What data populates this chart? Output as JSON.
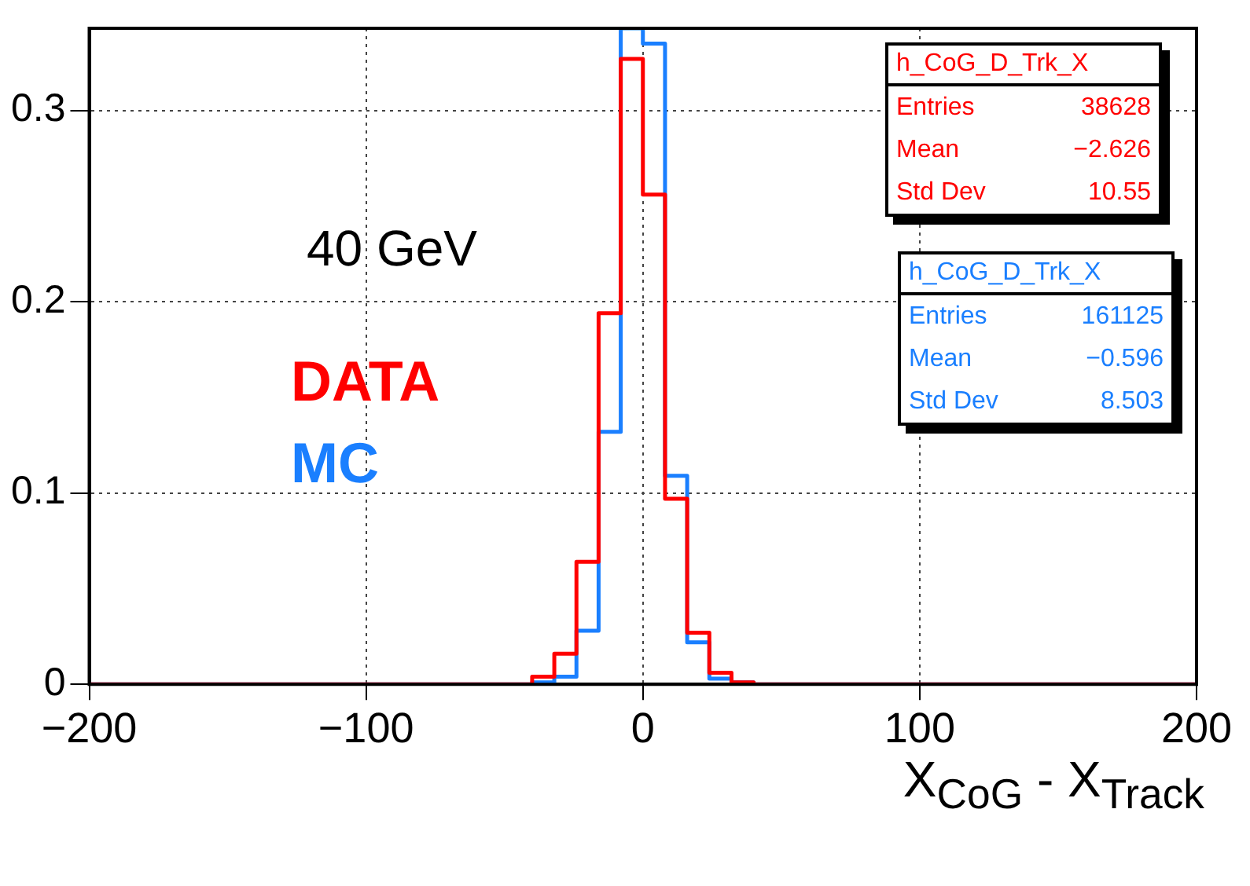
{
  "chart_data": {
    "type": "histogram",
    "xlabel": "X$_{CoG}$ - X$_{Track}$",
    "bins": [
      -200,
      -192,
      -184,
      -176,
      -168,
      -160,
      -152,
      -144,
      -136,
      -128,
      -120,
      -112,
      -104,
      -96,
      -88,
      -80,
      -72,
      -64,
      -56,
      -48,
      -40,
      -32,
      -24,
      -16,
      -8,
      0,
      8,
      16,
      24,
      32,
      40,
      48,
      56,
      64,
      72,
      80,
      88,
      96,
      104,
      112,
      120,
      128,
      136,
      144,
      152,
      160,
      168,
      176,
      184,
      192,
      200
    ],
    "series": [
      {
        "name": "DATA",
        "color": "#ff0000",
        "values": [
          0,
          0,
          0,
          0,
          0,
          0,
          0,
          0,
          0,
          0,
          0,
          0,
          0,
          0,
          0,
          0,
          0,
          0,
          0,
          0,
          0.004,
          0.016,
          0.064,
          0.194,
          0.327,
          0.256,
          0.097,
          0.027,
          0.006,
          0.001,
          0,
          0,
          0,
          0,
          0,
          0,
          0,
          0,
          0,
          0,
          0,
          0,
          0,
          0,
          0,
          0,
          0,
          0,
          0,
          0
        ]
      },
      {
        "name": "MC",
        "color": "#1a7fff",
        "values": [
          0,
          0,
          0,
          0,
          0,
          0,
          0,
          0,
          0,
          0,
          0,
          0,
          0,
          0,
          0,
          0,
          0,
          0,
          0,
          0,
          0.001,
          0.004,
          0.028,
          0.132,
          0.343,
          0.335,
          0.109,
          0.022,
          0.003,
          0.001,
          0,
          0,
          0,
          0,
          0,
          0,
          0,
          0,
          0,
          0,
          0,
          0,
          0,
          0,
          0,
          0,
          0,
          0,
          0,
          0
        ]
      }
    ],
    "xlim": [
      -200,
      200
    ],
    "xticks": [
      -200,
      -100,
      0,
      100,
      200
    ],
    "ylim": [
      0,
      0.343
    ],
    "yticks": [
      0,
      0.1,
      0.2,
      0.3
    ],
    "grid": true,
    "legend": false,
    "annotations": [
      "40 GeV",
      "h_CoG_D_Trk_X\nEntries 38628\nMean −2.626\nStd Dev 10.55",
      "h_CoG_D_Trk_X\nEntries 161125\nMean −0.596\nStd Dev 8.503"
    ]
  }
}
